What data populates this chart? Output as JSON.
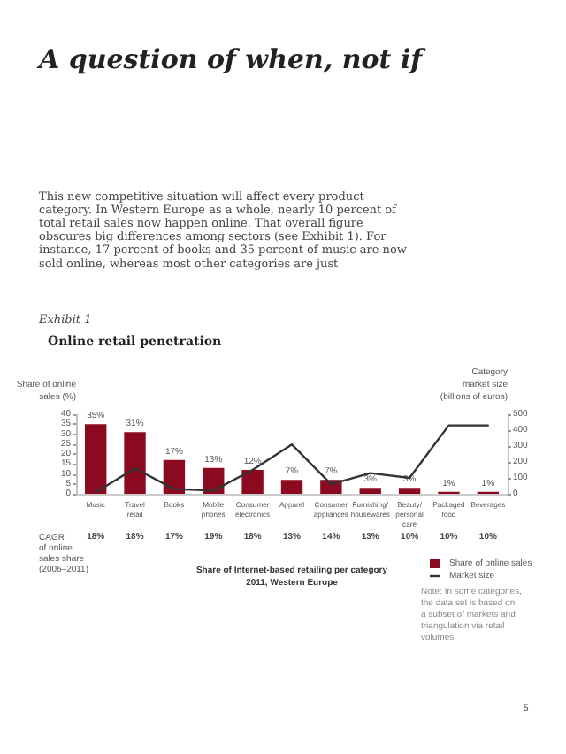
{
  "chart_data": {
    "type": "bar",
    "title": "Online retail penetration",
    "xlabel": "Share of Internet-based retailing per category\n2011, Western Europe",
    "ylabel": "Share of online\nsales (%)",
    "y2label": "Category\nmarket size\n(billions of euros)",
    "categories": [
      "Music",
      "Travel\nretail",
      "Books",
      "Mobile\nphones",
      "Consumer\nelectronics",
      "Apparel",
      "Consumer\nappliances",
      "Furnishing/\nhousewares",
      "Beauty/\npersonal\ncare",
      "Packaged\nfood",
      "Beverages"
    ],
    "series": [
      {
        "name": "Share of online sales",
        "color": "#8c0a1f",
        "values": [
          35,
          31,
          17,
          13,
          12,
          7,
          7,
          3,
          3,
          1,
          1
        ],
        "value_labels": [
          "35%",
          "31%",
          "17%",
          "13%",
          "12%",
          "7%",
          "7%",
          "3%",
          "3%",
          "1%",
          "1%"
        ]
      },
      {
        "name": "Market size",
        "type": "line",
        "axis": "y2",
        "color": "#333333",
        "marker": "none",
        "line_style": "solid",
        "values": [
          10,
          160,
          30,
          20,
          150,
          310,
          60,
          130,
          100,
          430,
          430
        ]
      }
    ],
    "ylim": [
      0,
      40
    ],
    "yticks": [
      0,
      5,
      10,
      15,
      20,
      25,
      30,
      35,
      40
    ],
    "y2lim": [
      0,
      500
    ],
    "y2ticks": [
      0,
      100,
      200,
      300,
      400,
      500
    ],
    "grid": false,
    "legend": "bottom right",
    "annotations": [
      "A question of when, not if",
      "This new competitive situation will affect every product category. In Western Europe as a whole, nearly 10 percent of total retail sales now happen online. That overall figure obscures big differences among sectors (see Exhibit 1). For instance, 17 percent of books and 35 percent of music are now sold online, whereas most other categories are just",
      "Exhibit 1",
      "CAGR\nof online\nsales share\n(2006–2011)",
      "18%",
      "18%",
      "17%",
      "19%",
      "18%",
      "13%",
      "14%",
      "13%",
      "10%",
      "10%",
      "10%",
      "Note: In some categories,\nthe data set is based on\na subset of markets and\ntriangulation via retail\nvolumes",
      "5"
    ]
  }
}
